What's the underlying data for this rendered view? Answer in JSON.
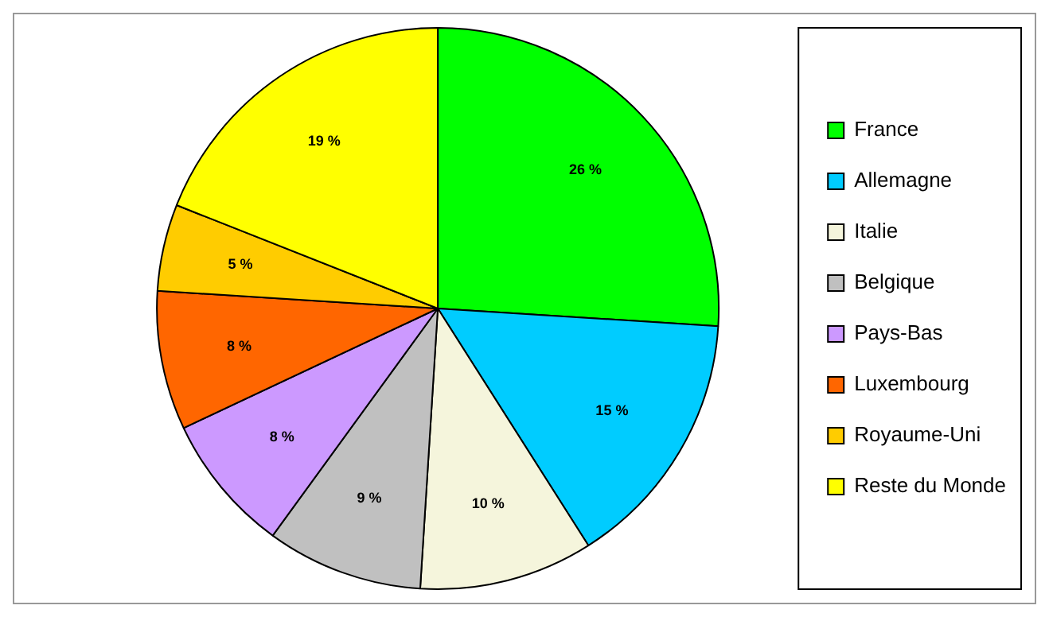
{
  "chart_data": {
    "type": "pie",
    "categories": [
      "France",
      "Allemagne",
      "Italie",
      "Belgique",
      "Pays-Bas",
      "Luxembourg",
      "Royaume-Uni",
      "Reste du Monde"
    ],
    "values": [
      26,
      15,
      10,
      9,
      8,
      8,
      5,
      19
    ],
    "colors": [
      "#00ff00",
      "#00ccff",
      "#f5f5dc",
      "#c0c0c0",
      "#cc99ff",
      "#ff6600",
      "#ffcc00",
      "#ffff00"
    ],
    "value_labels": [
      "26 %",
      "15 %",
      "10 %",
      "9 %",
      "8 %",
      "8 %",
      "5 %",
      "19 %"
    ],
    "legend": "right"
  }
}
